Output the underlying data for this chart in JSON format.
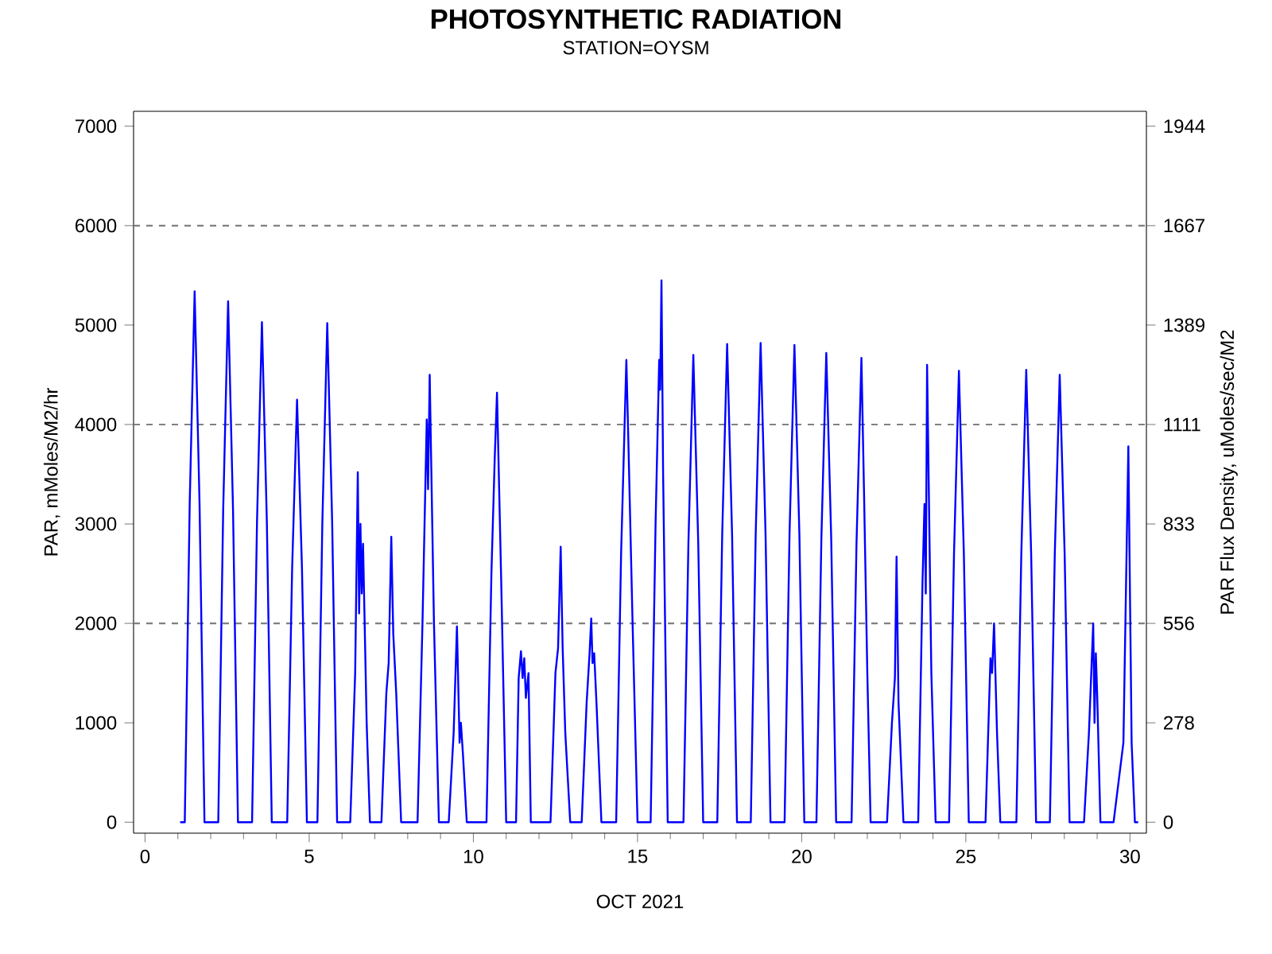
{
  "chart_data": {
    "type": "line",
    "title": "PHOTOSYNTHETIC RADIATION",
    "subtitle": "STATION=OYSM",
    "xlabel": "OCT 2021",
    "ylabel": "PAR, mMoles/M2/hr",
    "y2label": "PAR Flux Density, uMoles/sec/M2",
    "xlim": [
      -0.35,
      30.5
    ],
    "xticks": [
      0,
      5,
      10,
      15,
      20,
      25,
      30
    ],
    "ylim": [
      -110,
      7150
    ],
    "yticks": [
      0,
      1000,
      2000,
      3000,
      4000,
      5000,
      6000,
      7000
    ],
    "y2lim": [
      -30.56,
      1986.11
    ],
    "y2ticks": [
      {
        "value": 0,
        "label": "0"
      },
      {
        "value": 277.78,
        "label": "278"
      },
      {
        "value": 555.56,
        "label": "556"
      },
      {
        "value": 833.33,
        "label": "833"
      },
      {
        "value": 1111.11,
        "label": "1111"
      },
      {
        "value": 1388.89,
        "label": "1389"
      },
      {
        "value": 1666.67,
        "label": "1667"
      },
      {
        "value": 1944.44,
        "label": "1944"
      }
    ],
    "ref_lines": [
      {
        "axis": "y",
        "value": 2000,
        "color": "#808080",
        "line_style": "dashed"
      },
      {
        "axis": "y",
        "value": 4000,
        "color": "#808080",
        "line_style": "dashed"
      },
      {
        "axis": "y",
        "value": 6000,
        "color": "#808080",
        "line_style": "dashed"
      }
    ],
    "marker": "none",
    "line_style": "solid",
    "series": [
      {
        "color": "#0000ff",
        "x": [
          1.07,
          1.21,
          1.36,
          1.51,
          1.66,
          1.81,
          2.23,
          2.38,
          2.53,
          2.68,
          2.83,
          3.26,
          3.41,
          3.56,
          3.71,
          3.86,
          4.33,
          4.48,
          4.63,
          4.78,
          4.93,
          5.25,
          5.4,
          5.55,
          5.7,
          5.85,
          6.25,
          6.4,
          6.48,
          6.52,
          6.56,
          6.6,
          6.64,
          6.75,
          6.85,
          7.2,
          7.35,
          7.42,
          7.5,
          7.56,
          7.65,
          7.8,
          8.3,
          8.45,
          8.58,
          8.62,
          8.67,
          8.8,
          8.95,
          9.25,
          9.4,
          9.5,
          9.58,
          9.62,
          9.68,
          9.8,
          10.4,
          10.55,
          10.65,
          10.72,
          10.85,
          11.0,
          11.3,
          11.38,
          11.45,
          11.5,
          11.55,
          11.6,
          11.68,
          11.75,
          12.35,
          12.5,
          12.58,
          12.66,
          12.72,
          12.8,
          12.95,
          13.3,
          13.45,
          13.54,
          13.59,
          13.63,
          13.68,
          13.75,
          13.9,
          14.35,
          14.5,
          14.66,
          14.72,
          14.85,
          15.0,
          15.4,
          15.55,
          15.66,
          15.69,
          15.73,
          15.78,
          15.92,
          16.4,
          16.55,
          16.7,
          16.85,
          17.0,
          17.43,
          17.58,
          17.73,
          17.88,
          18.03,
          18.45,
          18.6,
          18.75,
          18.9,
          19.05,
          19.48,
          19.63,
          19.78,
          19.93,
          20.08,
          20.45,
          20.6,
          20.75,
          20.9,
          21.05,
          21.52,
          21.67,
          21.82,
          21.9,
          22.0,
          22.1,
          22.6,
          22.75,
          22.84,
          22.89,
          22.95,
          23.1,
          23.55,
          23.68,
          23.74,
          23.78,
          23.82,
          23.95,
          24.08,
          24.49,
          24.64,
          24.79,
          24.94,
          25.09,
          25.6,
          25.75,
          25.8,
          25.86,
          25.95,
          26.05,
          26.54,
          26.69,
          26.84,
          26.99,
          27.14,
          27.56,
          27.71,
          27.86,
          28.01,
          28.16,
          28.6,
          28.75,
          28.88,
          28.92,
          28.96,
          29.0,
          29.1,
          29.5,
          29.8,
          29.95,
          30.05,
          30.15,
          30.25
        ],
        "values": [
          0,
          0,
          3200,
          5340,
          3200,
          0,
          0,
          3140,
          5240,
          3140,
          0,
          0,
          3020,
          5030,
          3020,
          0,
          0,
          2550,
          4250,
          2550,
          0,
          0,
          3010,
          5020,
          3010,
          0,
          0,
          1500,
          3520,
          2100,
          3000,
          2300,
          2800,
          1000,
          0,
          0,
          1300,
          1600,
          2870,
          1900,
          1300,
          0,
          0,
          2000,
          4050,
          3350,
          4500,
          2000,
          0,
          0,
          900,
          1970,
          800,
          1000,
          700,
          0,
          0,
          2500,
          3650,
          4320,
          2400,
          0,
          0,
          1450,
          1720,
          1450,
          1650,
          1250,
          1500,
          0,
          0,
          1500,
          1750,
          2770,
          1750,
          900,
          0,
          0,
          1200,
          1700,
          2050,
          1600,
          1700,
          1200,
          0,
          0,
          2700,
          4650,
          3850,
          2000,
          0,
          0,
          3000,
          4650,
          4350,
          5450,
          3500,
          0,
          0,
          2800,
          4700,
          2800,
          0,
          0,
          2900,
          4810,
          2900,
          0,
          0,
          2900,
          4820,
          2900,
          0,
          0,
          2900,
          4800,
          2900,
          0,
          0,
          2850,
          4720,
          2850,
          0,
          0,
          2800,
          4670,
          3300,
          1500,
          0,
          0,
          1000,
          1450,
          2670,
          1200,
          0,
          0,
          2400,
          3200,
          2300,
          4600,
          1500,
          0,
          0,
          2700,
          4540,
          2700,
          0,
          0,
          1650,
          1500,
          2000,
          900,
          0,
          0,
          2700,
          4550,
          2700,
          0,
          0,
          2700,
          4500,
          2700,
          0,
          0,
          900,
          2000,
          1000,
          1700,
          1300,
          0,
          0,
          800,
          3780,
          800,
          0,
          0
        ]
      }
    ]
  }
}
